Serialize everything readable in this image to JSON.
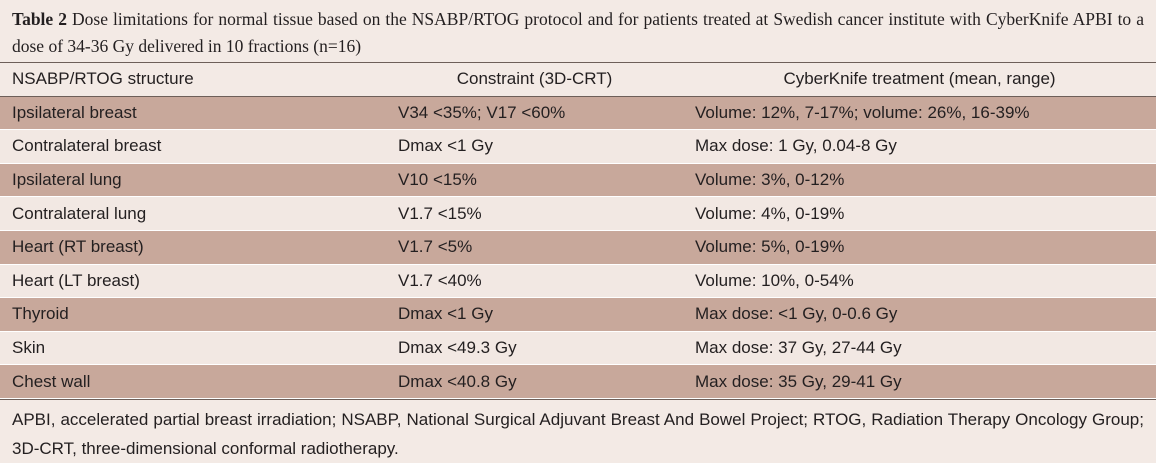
{
  "caption": {
    "label": "Table 2",
    "text": "Dose limitations for normal tissue based on the NSABP/RTOG protocol and for patients treated at Swedish cancer institute with CyberKnife APBI to a dose of 34-36 Gy delivered in 10 fractions (n=16)"
  },
  "table": {
    "header": [
      "NSABP/RTOG structure",
      "Constraint (3D-CRT)",
      "CyberKnife treatment (mean, range)"
    ],
    "rows": [
      [
        "Ipsilateral breast",
        "V34 <35%; V17 <60%",
        "Volume: 12%, 7-17%; volume: 26%, 16-39%"
      ],
      [
        "Contralateral breast",
        "Dmax <1 Gy",
        "Max dose: 1 Gy, 0.04-8 Gy"
      ],
      [
        "Ipsilateral lung",
        "V10 <15%",
        "Volume: 3%, 0-12%"
      ],
      [
        "Contralateral lung",
        "V1.7 <15%",
        "Volume: 4%, 0-19%"
      ],
      [
        "Heart (RT breast)",
        "V1.7 <5%",
        "Volume: 5%, 0-19%"
      ],
      [
        "Heart (LT breast)",
        "V1.7 <40%",
        "Volume: 10%, 0-54%"
      ],
      [
        "Thyroid",
        "Dmax <1 Gy",
        "Max dose: <1 Gy, 0-0.6 Gy"
      ],
      [
        "Skin",
        "Dmax <49.3 Gy",
        "Max dose: 37 Gy, 27-44 Gy"
      ],
      [
        "Chest wall",
        "Dmax <40.8 Gy",
        "Max dose: 35 Gy, 29-41 Gy"
      ]
    ]
  },
  "footnote": "APBI, accelerated partial breast irradiation; NSABP, National Surgical Adjuvant Breast And Bowel Project; RTOG, Radiation Therapy Oncology Group; 3D-CRT, three-dimensional conformal radiotherapy."
}
